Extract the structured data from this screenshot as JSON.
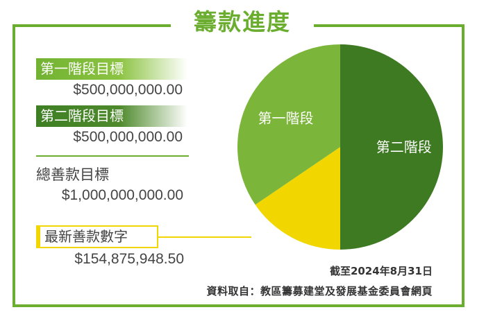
{
  "title": "籌款進度",
  "colors": {
    "frame": "#6aad2f",
    "stage1": "#7bb63a",
    "stage2": "#3d7a22",
    "latest": "#f2d600"
  },
  "targets": {
    "stage1_label": "第一階段目標",
    "stage1_amount": "$500,000,000.00",
    "stage2_label": "第二階段目標",
    "stage2_amount": "$500,000,000.00",
    "total_label": "總善款目標",
    "total_amount": "$1,000,000,000.00",
    "latest_label": "最新善款數字",
    "latest_amount": "$154,875,948.50"
  },
  "notes": {
    "as_of": "截至2024年8月31日",
    "source": "資料取自：教區籌募建堂及發展基金委員會網頁"
  },
  "chart_data": {
    "type": "pie",
    "title": "",
    "slices": [
      {
        "label": "第二階段",
        "value": 500000000,
        "color": "#3d7a22"
      },
      {
        "label": "",
        "value": 154875948.5,
        "color": "#f2d600"
      },
      {
        "label": "第一階段",
        "value": 345124051.5,
        "color": "#7bb63a"
      }
    ],
    "start_angle_deg": 0,
    "direction": "clockwise"
  }
}
